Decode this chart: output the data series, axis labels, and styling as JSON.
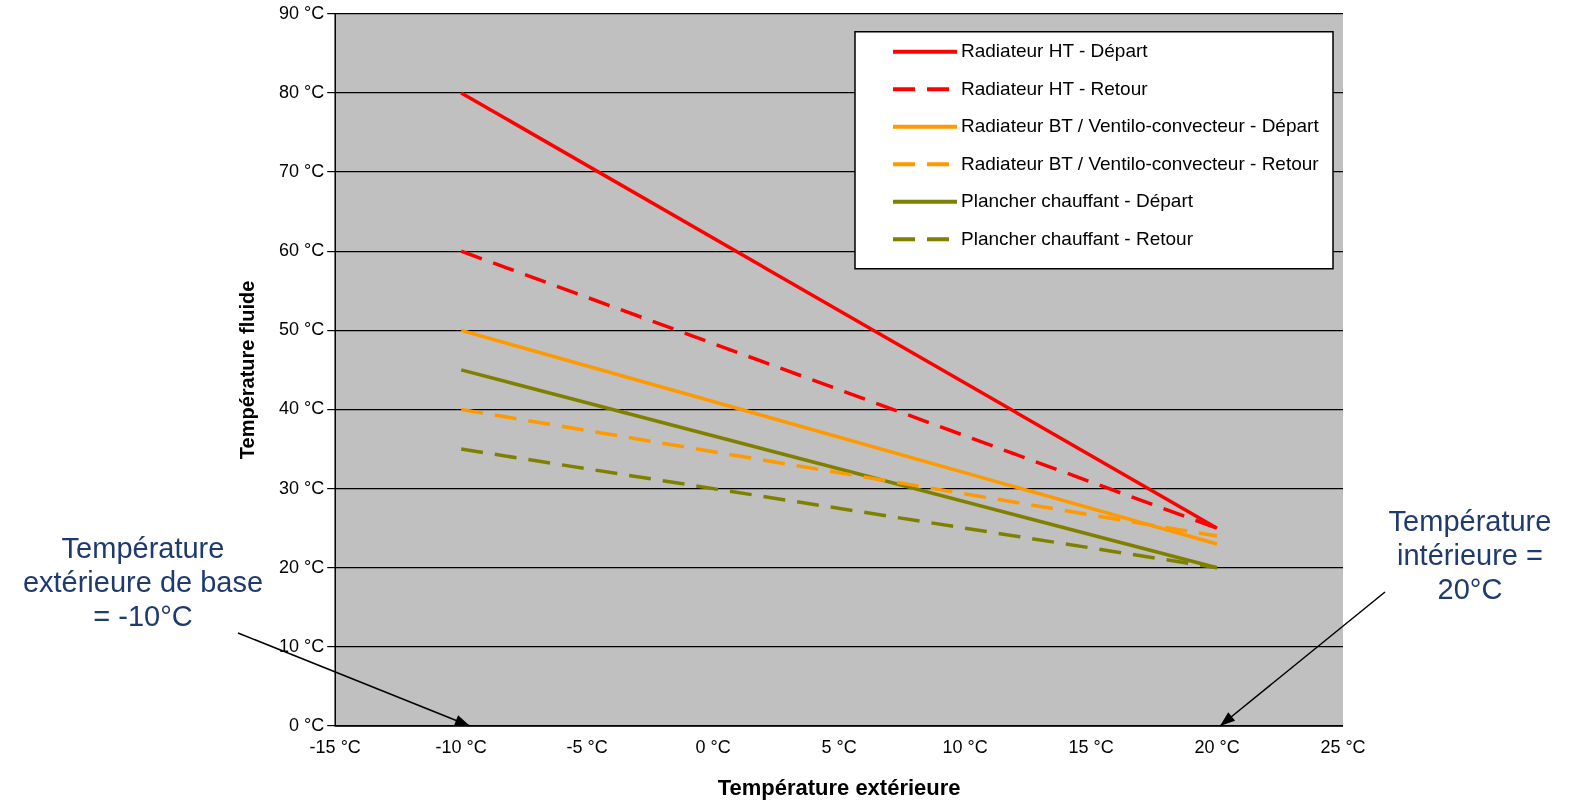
{
  "chart_data": {
    "type": "line",
    "xlabel": "Température extérieure",
    "ylabel": "Température fluide",
    "x": [
      -10,
      20
    ],
    "series": [
      {
        "name": "Radiateur HT - Départ",
        "color": "#ff0000",
        "values": [
          80,
          25
        ],
        "line_style": "solid"
      },
      {
        "name": "Radiateur HT - Retour",
        "color": "#ff0000",
        "values": [
          60,
          25
        ],
        "line_style": "dashed"
      },
      {
        "name": "Radiateur BT / Ventilo-convecteur - Départ",
        "color": "#ff9900",
        "values": [
          50,
          23
        ],
        "line_style": "solid"
      },
      {
        "name": "Radiateur BT / Ventilo-convecteur - Retour",
        "color": "#ff9900",
        "values": [
          40,
          24
        ],
        "line_style": "dashed"
      },
      {
        "name": "Plancher chauffant - Départ",
        "color": "#808000",
        "values": [
          45,
          20
        ],
        "line_style": "solid"
      },
      {
        "name": "Plancher chauffant - Retour",
        "color": "#808000",
        "values": [
          35,
          20
        ],
        "line_style": "dashed"
      }
    ],
    "xlim": [
      -15,
      25
    ],
    "xticks": [
      {
        "value": -15,
        "label": "-15 °C"
      },
      {
        "value": -10,
        "label": "-10 °C"
      },
      {
        "value": -5,
        "label": "-5 °C"
      },
      {
        "value": 0,
        "label": "0 °C"
      },
      {
        "value": 5,
        "label": "5 °C"
      },
      {
        "value": 10,
        "label": "10 °C"
      },
      {
        "value": 15,
        "label": "15 °C"
      },
      {
        "value": 20,
        "label": "20 °C"
      },
      {
        "value": 25,
        "label": "25 °C"
      }
    ],
    "ylim": [
      0,
      90
    ],
    "yticks": [
      {
        "value": 0,
        "label": "0 °C"
      },
      {
        "value": 10,
        "label": "10 °C"
      },
      {
        "value": 20,
        "label": "20 °C"
      },
      {
        "value": 30,
        "label": "30 °C"
      },
      {
        "value": 40,
        "label": "40 °C"
      },
      {
        "value": 50,
        "label": "50 °C"
      },
      {
        "value": 60,
        "label": "60 °C"
      },
      {
        "value": 70,
        "label": "70 °C"
      },
      {
        "value": 80,
        "label": "80 °C"
      },
      {
        "value": 90,
        "label": "90 °C"
      }
    ],
    "grid": "y",
    "legend": "top right",
    "marker": "none",
    "annotations": [
      "Température extérieure de base = -10°C",
      "Température intérieure = 20°C"
    ]
  }
}
